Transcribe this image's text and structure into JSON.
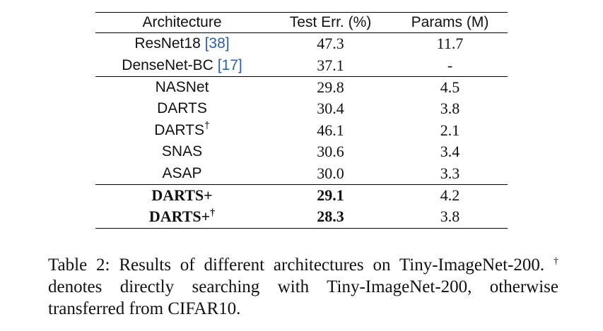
{
  "table": {
    "header": [
      "Architecture",
      "Test Err. (%)",
      "Params (M)"
    ],
    "groups": [
      [
        {
          "name": "ResNet18",
          "ref": "[38]",
          "err": "47.3",
          "params": "11.7"
        },
        {
          "name": "DenseNet-BC",
          "ref": "[17]",
          "err": "37.1",
          "params": "-"
        }
      ],
      [
        {
          "name": "NASNet",
          "err": "29.8",
          "params": "4.5"
        },
        {
          "name": "DARTS",
          "err": "30.4",
          "params": "3.8"
        },
        {
          "name": "DARTS",
          "sup": "†",
          "err": "46.1",
          "params": "2.1"
        },
        {
          "name": "SNAS",
          "err": "30.6",
          "params": "3.4"
        },
        {
          "name": "ASAP",
          "err": "30.0",
          "params": "3.3"
        }
      ],
      [
        {
          "name": "DARTS+",
          "err": "29.1",
          "params": "4.2",
          "bold": [
            true,
            true,
            false
          ]
        },
        {
          "name": "DARTS+",
          "sup": "†",
          "err": "28.3",
          "params": "3.8",
          "bold": [
            true,
            true,
            false
          ]
        }
      ]
    ]
  },
  "caption": {
    "label": "Table 2:",
    "text": "Results of different architectures on Tiny-ImageNet-200.",
    "sup": "†",
    "note": "denotes directly searching with Tiny-ImageNet-200, otherwise transferred from CIFAR10."
  }
}
